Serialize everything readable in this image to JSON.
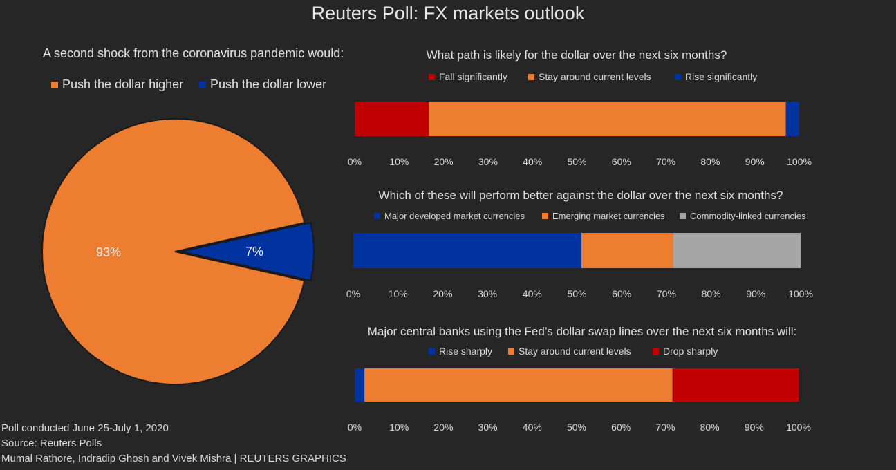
{
  "title": "Reuters Poll: FX markets outlook",
  "colors": {
    "orange": "#ED7D31",
    "blue": "#0033A0",
    "red": "#C00000",
    "gray": "#A6A6A6"
  },
  "chart_data": [
    {
      "type": "pie",
      "title": "A second shock from the coronavirus pandemic would:",
      "legend": [
        "Push the dollar higher",
        "Push the dollar lower"
      ],
      "values": [
        93,
        7
      ],
      "labels": [
        "93%",
        "7%"
      ]
    },
    {
      "type": "bar",
      "orientation": "horizontal-stacked-100",
      "title": "What path is likely for the dollar over the next six months?",
      "series": [
        {
          "name": "Fall significantly",
          "values": [
            16.7
          ]
        },
        {
          "name": "Stay around current levels",
          "values": [
            80.3
          ]
        },
        {
          "name": "Rise significantly",
          "values": [
            3.0
          ]
        }
      ],
      "xlim": [
        0,
        100
      ],
      "ticks": [
        "0%",
        "10%",
        "20%",
        "30%",
        "40%",
        "50%",
        "60%",
        "70%",
        "80%",
        "90%",
        "100%"
      ]
    },
    {
      "type": "bar",
      "orientation": "horizontal-stacked-100",
      "title": "Which of these will perform better against the dollar over the next six months?",
      "series": [
        {
          "name": "Major developed market currencies",
          "values": [
            51
          ]
        },
        {
          "name": "Emerging market currencies",
          "values": [
            20.5
          ]
        },
        {
          "name": "Commodity-linked currencies",
          "values": [
            28.5
          ]
        }
      ],
      "xlim": [
        0,
        100
      ],
      "ticks": [
        "0%",
        "10%",
        "20%",
        "30%",
        "40%",
        "50%",
        "60%",
        "70%",
        "80%",
        "90%",
        "100%"
      ]
    },
    {
      "type": "bar",
      "orientation": "horizontal-stacked-100",
      "title": "Major central banks using the Fed’s dollar swap lines over the next six months will:",
      "series": [
        {
          "name": "Rise sharply",
          "values": [
            2.2
          ]
        },
        {
          "name": "Stay around current levels",
          "values": [
            69.4
          ]
        },
        {
          "name": "Drop sharply",
          "values": [
            28.4
          ]
        }
      ],
      "xlim": [
        0,
        100
      ],
      "ticks": [
        "0%",
        "10%",
        "20%",
        "30%",
        "40%",
        "50%",
        "60%",
        "70%",
        "80%",
        "90%",
        "100%"
      ]
    }
  ],
  "footer": {
    "line1": "Poll conducted June 25-July 1, 2020",
    "line2": "Source: Reuters Polls",
    "line3": "Mumal Rathore, Indradip Ghosh and Vivek Mishra  | REUTERS GRAPHICS"
  }
}
